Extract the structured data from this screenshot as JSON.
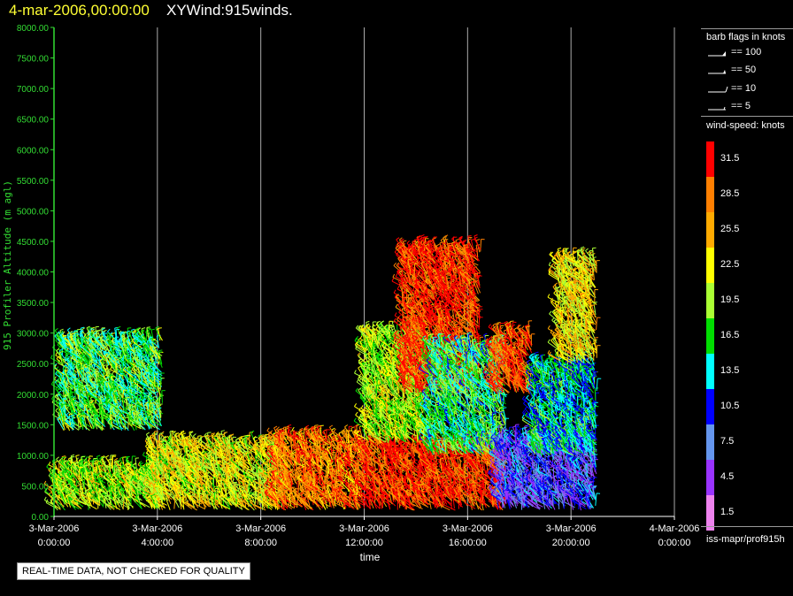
{
  "header": {
    "date": "4-mar-2006,00:00:00",
    "title": "XYWind:915winds."
  },
  "chart_data": {
    "type": "scatter",
    "xlabel": "time",
    "ylabel": "915 Profiler Altitude (m agl)",
    "ylim": [
      0,
      8000
    ],
    "xlim_hours": [
      0,
      24
    ],
    "x_ticks": [
      {
        "h": 0,
        "date": "3-Mar-2006",
        "time": "0:00:00"
      },
      {
        "h": 4,
        "date": "3-Mar-2006",
        "time": "4:00:00"
      },
      {
        "h": 8,
        "date": "3-Mar-2006",
        "time": "8:00:00"
      },
      {
        "h": 12,
        "date": "3-Mar-2006",
        "time": "12:00:00"
      },
      {
        "h": 16,
        "date": "3-Mar-2006",
        "time": "16:00:00"
      },
      {
        "h": 20,
        "date": "3-Mar-2006",
        "time": "20:00:00"
      },
      {
        "h": 24,
        "date": "4-Mar-2006",
        "time": "0:00:00"
      }
    ],
    "y_ticks": [
      "0.00",
      "500.00",
      "1000.00",
      "1500.00",
      "2000.00",
      "2500.00",
      "3000.00",
      "3500.00",
      "4000.00",
      "4500.00",
      "5000.00",
      "5500.00",
      "6000.00",
      "6500.00",
      "7000.00",
      "7500.00",
      "8000.00"
    ],
    "grid": "vertical",
    "regions": [
      {
        "t0": 0.0,
        "t1": 4.3,
        "zmax": 800,
        "speed": 20
      },
      {
        "t0": 0.3,
        "t1": 4.2,
        "zmin": 1400,
        "zmax": 2900,
        "speed": 17
      },
      {
        "t0": 3.8,
        "t1": 9.0,
        "zmax": 1200,
        "speed": 22
      },
      {
        "t0": 8.5,
        "t1": 12.0,
        "zmax": 1300,
        "speed": 28
      },
      {
        "t0": 12.0,
        "t1": 17.5,
        "zmax": 1200,
        "speed": 31
      },
      {
        "t0": 12.0,
        "t1": 14.5,
        "zmin": 1200,
        "zmax": 3000,
        "speed": 20
      },
      {
        "t0": 13.5,
        "t1": 16.5,
        "zmin": 2000,
        "zmax": 4400,
        "speed": 31
      },
      {
        "t0": 14.5,
        "t1": 17.5,
        "zmin": 1000,
        "zmax": 2800,
        "speed": 16
      },
      {
        "t0": 17.0,
        "t1": 18.5,
        "zmin": 2000,
        "zmax": 3000,
        "speed": 30
      },
      {
        "t0": 17.2,
        "t1": 21.0,
        "zmax": 1300,
        "speed": 8
      },
      {
        "t0": 18.5,
        "t1": 21.0,
        "zmin": 1000,
        "zmax": 2500,
        "speed": 14
      },
      {
        "t0": 19.5,
        "t1": 21.0,
        "zmin": 2500,
        "zmax": 4200,
        "speed": 23
      }
    ]
  },
  "legend": {
    "barb_title": "barb flags in knots",
    "barbs": [
      "== 100",
      "== 50",
      "== 10",
      "== 5"
    ],
    "speed_title": "wind-speed: knots",
    "colorbar": [
      {
        "label": "31.5",
        "color": "#ff0000"
      },
      {
        "label": "28.5",
        "color": "#ff7f00"
      },
      {
        "label": "25.5",
        "color": "#ffaa00"
      },
      {
        "label": "22.5",
        "color": "#ffff00"
      },
      {
        "label": "19.5",
        "color": "#aaff33"
      },
      {
        "label": "16.5",
        "color": "#00dd00"
      },
      {
        "label": "13.5",
        "color": "#00ffff"
      },
      {
        "label": "10.5",
        "color": "#0000ff"
      },
      {
        "label": "7.5",
        "color": "#6495ed"
      },
      {
        "label": "4.5",
        "color": "#9933ff"
      },
      {
        "label": "1.5",
        "color": "#ee82ee"
      }
    ],
    "source": "iss-mapr/prof915h"
  },
  "notice": "REAL-TIME DATA, NOT CHECKED FOR QUALITY",
  "colors": {
    "axis": "#33dd33",
    "grid": "#aaaaaa",
    "title_date": "#ffff33"
  }
}
